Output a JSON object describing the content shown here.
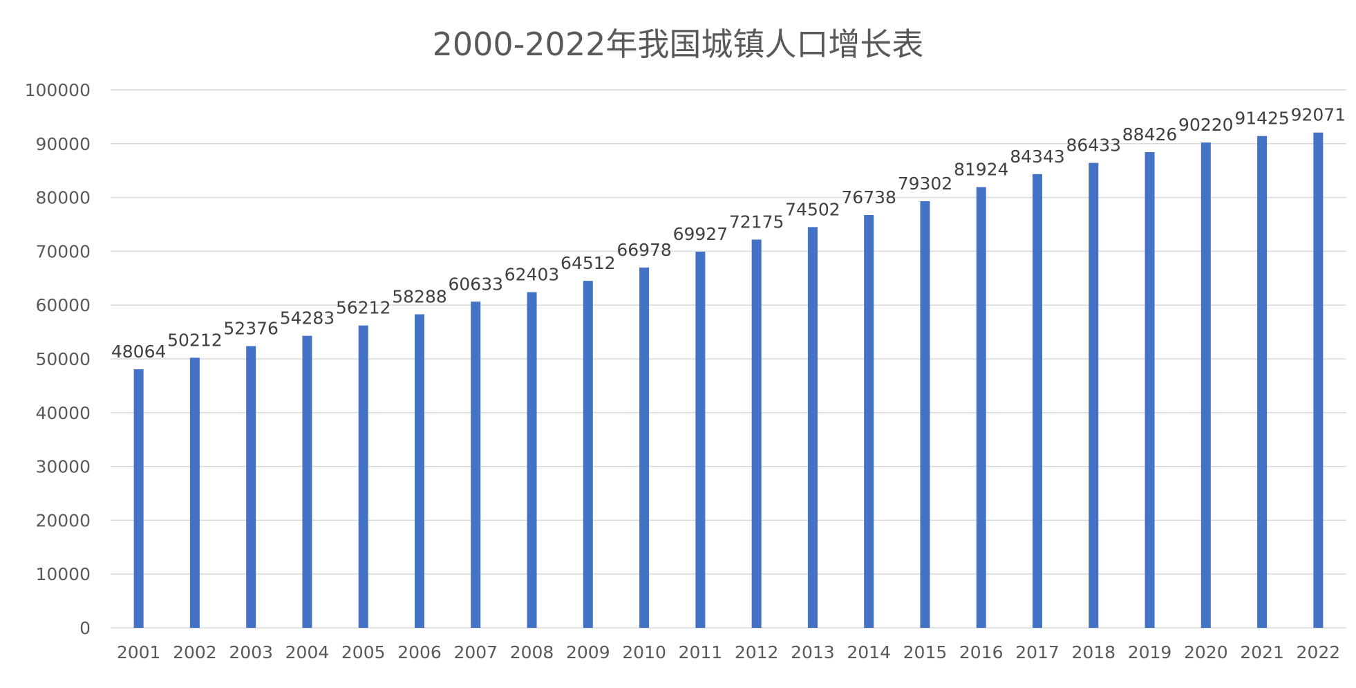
{
  "chart_data": {
    "type": "bar",
    "title": "2000-2022年我国城镇人口增长表",
    "xlabel": "",
    "ylabel": "",
    "categories": [
      "2001",
      "2002",
      "2003",
      "2004",
      "2005",
      "2006",
      "2007",
      "2008",
      "2009",
      "2010",
      "2011",
      "2012",
      "2013",
      "2014",
      "2015",
      "2016",
      "2017",
      "2018",
      "2019",
      "2020",
      "2021",
      "2022"
    ],
    "values": [
      48064,
      50212,
      52376,
      54283,
      56212,
      58288,
      60633,
      62403,
      64512,
      66978,
      69927,
      72175,
      74502,
      76738,
      79302,
      81924,
      84343,
      86433,
      88426,
      90220,
      91425,
      92071
    ],
    "ylim": [
      0,
      100000
    ],
    "yticks": [
      0,
      10000,
      20000,
      30000,
      40000,
      50000,
      60000,
      70000,
      80000,
      90000,
      100000
    ],
    "grid": true,
    "legend": "none",
    "data_labels": true,
    "bar_color": "#4472C4",
    "grid_color": "#D9D9D9",
    "label_color": "#404040",
    "tick_color": "#595959"
  }
}
